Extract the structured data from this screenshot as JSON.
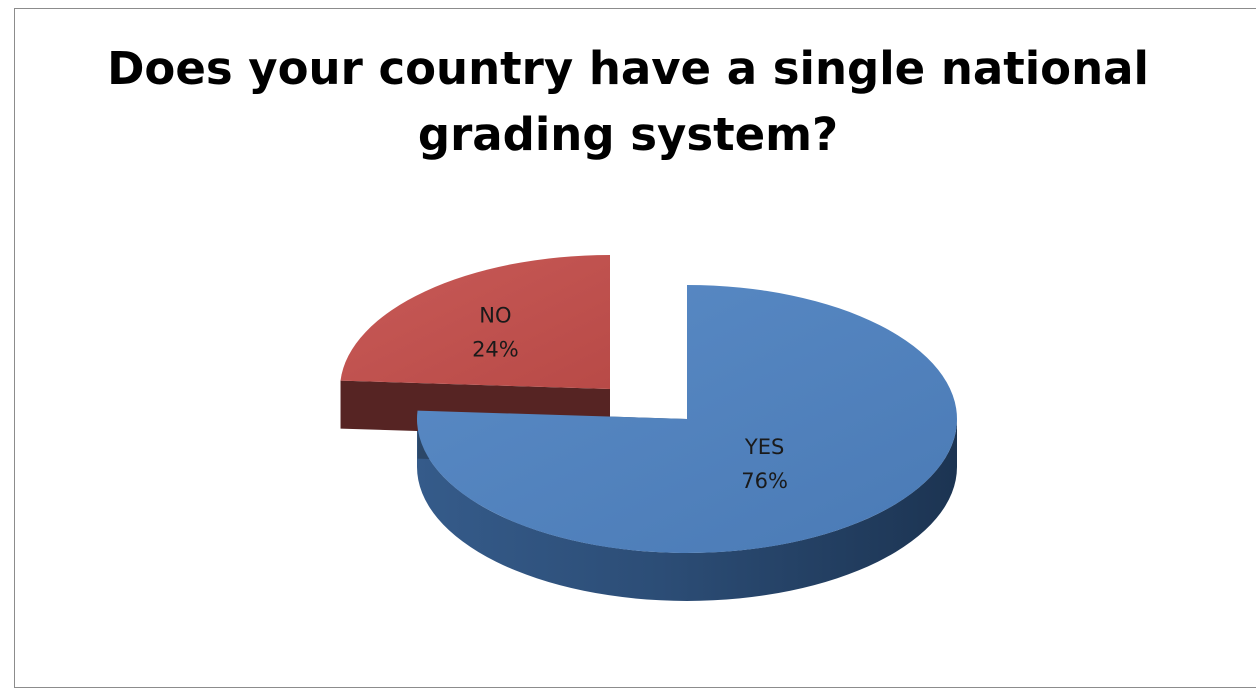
{
  "chart_data": {
    "type": "pie",
    "title": "Does your country have a single national grading system?",
    "title_lines": [
      "Does your country have a single national",
      "grading system?"
    ],
    "slices": [
      {
        "label": "YES",
        "value": 76,
        "value_label": "76%",
        "color": "#4f81bd"
      },
      {
        "label": "NO",
        "value": 24,
        "value_label": "24%",
        "color": "#c0504d"
      }
    ],
    "exploded": "NO",
    "style": "3d",
    "legend": "none"
  }
}
